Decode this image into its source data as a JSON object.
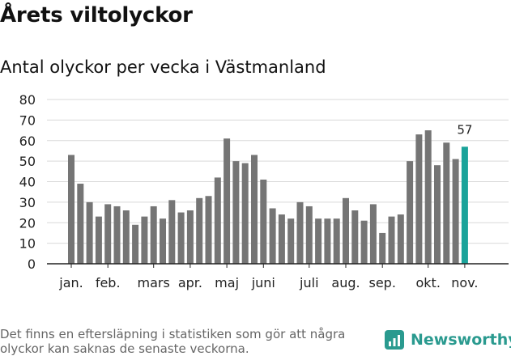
{
  "title": "Årets viltolyckor",
  "subtitle": "Antal olyckor per vecka i Västmanland",
  "footnote": "Det finns en eftersläpning i statistiken som gör att några olyckor kan saknas de senaste veckorna.",
  "brand": {
    "name": "Newsworthy",
    "icon": "newsworthy-logo-icon"
  },
  "colors": {
    "bar": "#757575",
    "highlight": "#1aa39a",
    "grid": "#d9d9d9",
    "axis": "#222222",
    "brand": "#2a9a8f"
  },
  "chart_data": {
    "type": "bar",
    "title": "Antal olyckor per vecka i Västmanland",
    "xlabel": "",
    "ylabel": "",
    "ylim": [
      0,
      80
    ],
    "yticks": [
      0,
      10,
      20,
      30,
      40,
      50,
      60,
      70,
      80
    ],
    "grid": true,
    "values": [
      53,
      39,
      30,
      23,
      29,
      28,
      26,
      19,
      23,
      28,
      22,
      31,
      25,
      26,
      32,
      33,
      42,
      61,
      50,
      49,
      53,
      41,
      27,
      24,
      22,
      30,
      28,
      22,
      22,
      22,
      32,
      26,
      21,
      29,
      15,
      23,
      24,
      50,
      63,
      65,
      48,
      59,
      51,
      57
    ],
    "highlight_index": 43,
    "highlight_label": "57",
    "month_labels": [
      {
        "label": "jan.",
        "week_index": 0
      },
      {
        "label": "feb.",
        "week_index": 4
      },
      {
        "label": "mars",
        "week_index": 9
      },
      {
        "label": "apr.",
        "week_index": 13
      },
      {
        "label": "maj",
        "week_index": 17
      },
      {
        "label": "juni",
        "week_index": 21
      },
      {
        "label": "juli",
        "week_index": 26
      },
      {
        "label": "aug.",
        "week_index": 30
      },
      {
        "label": "sep.",
        "week_index": 34
      },
      {
        "label": "okt.",
        "week_index": 39
      },
      {
        "label": "nov.",
        "week_index": 43
      }
    ]
  }
}
